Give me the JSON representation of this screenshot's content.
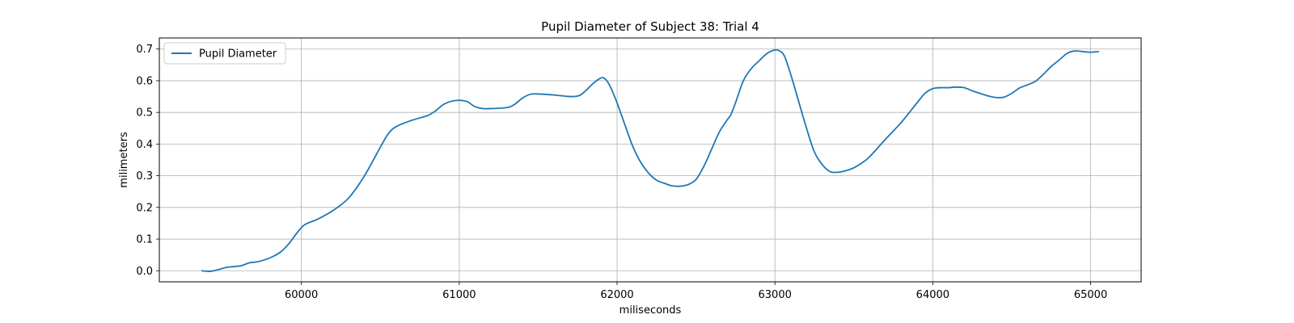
{
  "chart_data": {
    "type": "line",
    "title": "Pupil Diameter of Subject 38: Trial 4",
    "xlabel": "miliseconds",
    "ylabel": "milimeters",
    "xlim": [
      59100,
      65320
    ],
    "ylim": [
      -0.035,
      0.735
    ],
    "xticks": [
      60000,
      61000,
      62000,
      63000,
      64000,
      65000
    ],
    "yticks": [
      0.0,
      0.1,
      0.2,
      0.3,
      0.4,
      0.5,
      0.6,
      0.7
    ],
    "ytick_labels": [
      "0.0",
      "0.1",
      "0.2",
      "0.3",
      "0.4",
      "0.5",
      "0.6",
      "0.7"
    ],
    "grid": true,
    "legend_position": "top-left",
    "series": [
      {
        "name": "Pupil Diameter",
        "color": "#1f77b4",
        "x": [
          59370,
          59420,
          59470,
          59520,
          59570,
          59620,
          59670,
          59720,
          59770,
          59820,
          59870,
          59920,
          59970,
          60020,
          60100,
          60200,
          60300,
          60400,
          60500,
          60550,
          60600,
          60700,
          60800,
          60850,
          60900,
          60950,
          61000,
          61050,
          61100,
          61150,
          61200,
          61300,
          61350,
          61400,
          61450,
          61500,
          61600,
          61700,
          61760,
          61800,
          61850,
          61900,
          61930,
          61960,
          62000,
          62050,
          62100,
          62150,
          62200,
          62250,
          62300,
          62350,
          62400,
          62450,
          62500,
          62550,
          62600,
          62650,
          62700,
          62720,
          62750,
          62800,
          62850,
          62900,
          62950,
          63000,
          63030,
          63060,
          63100,
          63150,
          63200,
          63250,
          63300,
          63350,
          63400,
          63450,
          63500,
          63550,
          63600,
          63700,
          63800,
          63900,
          63950,
          64000,
          64050,
          64100,
          64150,
          64200,
          64250,
          64300,
          64350,
          64400,
          64450,
          64500,
          64550,
          64600,
          64650,
          64700,
          64750,
          64800,
          64850,
          64900,
          64950,
          65000,
          65050
        ],
        "y": [
          0.0,
          -0.002,
          0.003,
          0.01,
          0.013,
          0.016,
          0.025,
          0.028,
          0.035,
          0.045,
          0.06,
          0.085,
          0.118,
          0.145,
          0.162,
          0.19,
          0.23,
          0.3,
          0.39,
          0.432,
          0.455,
          0.475,
          0.49,
          0.505,
          0.525,
          0.535,
          0.538,
          0.534,
          0.518,
          0.512,
          0.512,
          0.515,
          0.525,
          0.545,
          0.557,
          0.558,
          0.555,
          0.55,
          0.553,
          0.568,
          0.592,
          0.609,
          0.603,
          0.578,
          0.53,
          0.46,
          0.392,
          0.342,
          0.308,
          0.286,
          0.276,
          0.268,
          0.267,
          0.272,
          0.288,
          0.33,
          0.385,
          0.44,
          0.478,
          0.492,
          0.53,
          0.6,
          0.638,
          0.663,
          0.686,
          0.697,
          0.694,
          0.678,
          0.62,
          0.535,
          0.45,
          0.375,
          0.335,
          0.313,
          0.311,
          0.316,
          0.325,
          0.34,
          0.36,
          0.415,
          0.468,
          0.53,
          0.56,
          0.575,
          0.578,
          0.578,
          0.58,
          0.578,
          0.568,
          0.56,
          0.552,
          0.547,
          0.548,
          0.56,
          0.577,
          0.587,
          0.598,
          0.62,
          0.645,
          0.665,
          0.686,
          0.694,
          0.692,
          0.69,
          0.692
        ]
      }
    ]
  }
}
